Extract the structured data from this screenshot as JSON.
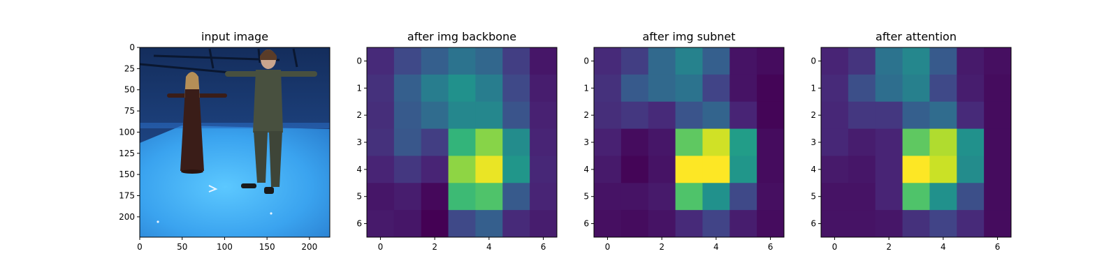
{
  "chart_data": [
    {
      "type": "image",
      "title": "input image",
      "description": "RGB photo of two people standing with arms outstretched in a blue studio with blue floor",
      "xticks": [
        0,
        50,
        100,
        150,
        200
      ],
      "yticks": [
        0,
        25,
        50,
        75,
        100,
        125,
        150,
        175,
        200
      ],
      "xlim": [
        0,
        224
      ],
      "ylim": [
        224,
        0
      ],
      "colors": {
        "wall": "#1f4a8c",
        "floor": "#3fa8f0",
        "woman_dress": "#3a1d18",
        "man_suit": "#48503f",
        "skin": "#c9a58e"
      }
    },
    {
      "type": "heatmap",
      "title": "after img backbone",
      "colormap": "viridis",
      "xticks": [
        0,
        2,
        4,
        6
      ],
      "yticks": [
        0,
        1,
        2,
        3,
        4,
        5,
        6
      ],
      "values": [
        [
          0.12,
          0.22,
          0.3,
          0.38,
          0.33,
          0.18,
          0.06
        ],
        [
          0.14,
          0.3,
          0.42,
          0.5,
          0.42,
          0.22,
          0.08
        ],
        [
          0.13,
          0.28,
          0.35,
          0.46,
          0.46,
          0.26,
          0.09
        ],
        [
          0.14,
          0.27,
          0.18,
          0.65,
          0.82,
          0.48,
          0.1
        ],
        [
          0.1,
          0.16,
          0.1,
          0.83,
          0.97,
          0.52,
          0.11
        ],
        [
          0.06,
          0.08,
          0.02,
          0.68,
          0.72,
          0.28,
          0.1
        ],
        [
          0.07,
          0.06,
          0.0,
          0.22,
          0.3,
          0.12,
          0.08
        ]
      ]
    },
    {
      "type": "heatmap",
      "title": "after img subnet",
      "colormap": "viridis",
      "xticks": [
        0,
        2,
        4,
        6
      ],
      "yticks": [
        0,
        1,
        2,
        3,
        4,
        5,
        6
      ],
      "values": [
        [
          0.12,
          0.18,
          0.34,
          0.44,
          0.3,
          0.05,
          0.03
        ],
        [
          0.14,
          0.28,
          0.34,
          0.38,
          0.2,
          0.05,
          0.01
        ],
        [
          0.13,
          0.16,
          0.12,
          0.26,
          0.32,
          0.1,
          0.01
        ],
        [
          0.09,
          0.03,
          0.06,
          0.75,
          0.93,
          0.55,
          0.03
        ],
        [
          0.07,
          0.01,
          0.05,
          1.0,
          1.0,
          0.52,
          0.03
        ],
        [
          0.05,
          0.05,
          0.07,
          0.72,
          0.5,
          0.22,
          0.04
        ],
        [
          0.04,
          0.03,
          0.05,
          0.12,
          0.2,
          0.08,
          0.03
        ]
      ]
    },
    {
      "type": "heatmap",
      "title": "after attention",
      "colormap": "viridis",
      "xticks": [
        0,
        2,
        4,
        6
      ],
      "yticks": [
        0,
        1,
        2,
        3,
        4,
        5,
        6
      ],
      "values": [
        [
          0.1,
          0.15,
          0.38,
          0.46,
          0.28,
          0.07,
          0.04
        ],
        [
          0.12,
          0.24,
          0.36,
          0.43,
          0.22,
          0.08,
          0.03
        ],
        [
          0.11,
          0.16,
          0.16,
          0.3,
          0.35,
          0.12,
          0.03
        ],
        [
          0.11,
          0.08,
          0.1,
          0.75,
          0.88,
          0.5,
          0.03
        ],
        [
          0.07,
          0.06,
          0.1,
          1.0,
          0.92,
          0.48,
          0.03
        ],
        [
          0.05,
          0.05,
          0.1,
          0.72,
          0.5,
          0.24,
          0.03
        ],
        [
          0.05,
          0.05,
          0.06,
          0.14,
          0.2,
          0.12,
          0.03
        ]
      ]
    }
  ]
}
